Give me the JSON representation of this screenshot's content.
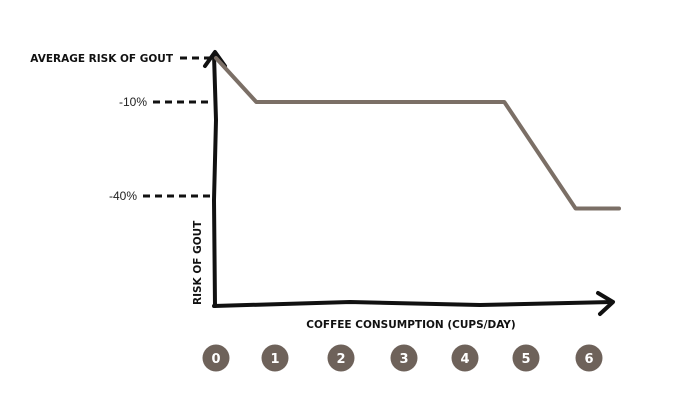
{
  "chart_data": {
    "type": "line",
    "title": "",
    "xlabel": "COFFEE CONSUMPTION (CUPS/DAY)",
    "ylabel": "RISK OF GOUT",
    "x_tick_labels": [
      "0",
      "1",
      "2",
      "3",
      "4",
      "5",
      "6"
    ],
    "y_tick_labels": [
      {
        "value": 0,
        "label": "AVERAGE RISK OF GOUT"
      },
      {
        "value": -10,
        "label": "-10%"
      },
      {
        "value": -40,
        "label": "-40%"
      }
    ],
    "series": [
      {
        "x": [
          0,
          0.65,
          4.65,
          5.8,
          6.5
        ],
        "y": [
          0,
          -10,
          -10,
          -44,
          -44
        ]
      }
    ],
    "xlim": [
      0,
      6.5
    ],
    "grid": false,
    "colors": {
      "line": "#7b6f66",
      "axis": "#111111",
      "badge": "#6e625a"
    }
  }
}
